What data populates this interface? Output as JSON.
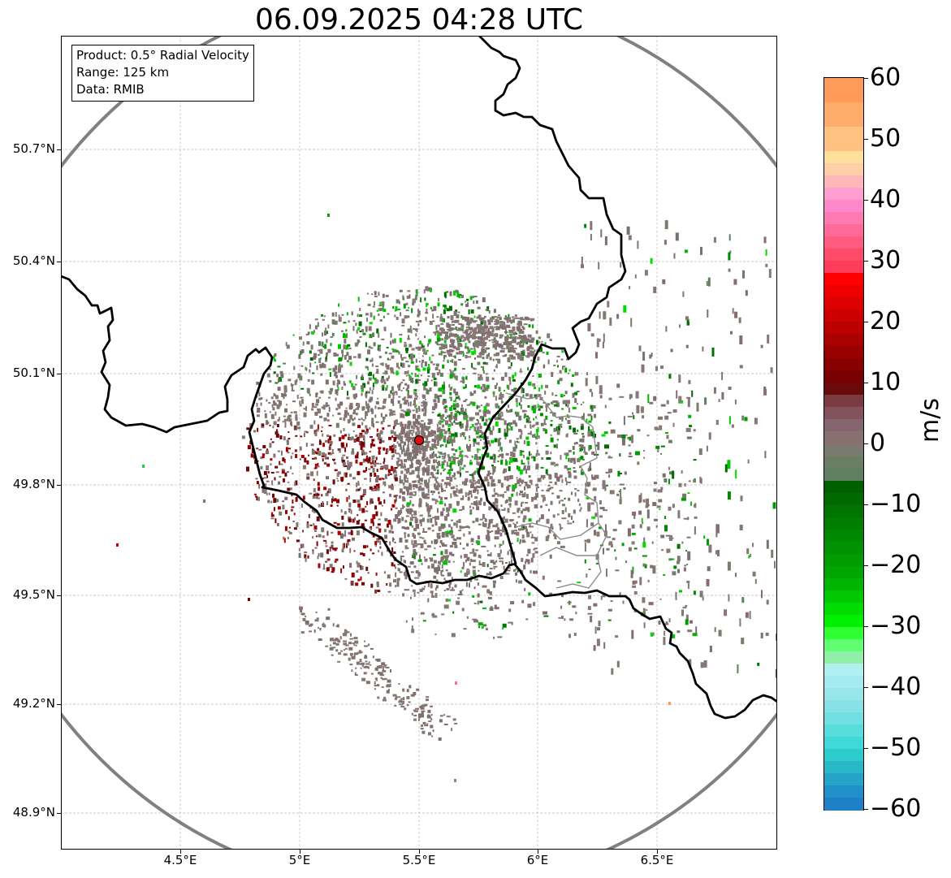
{
  "title": "06.09.2025 04:28 UTC",
  "info_box": {
    "product": "Product: 0.5° Radial Velocity",
    "range": "Range: 125 km",
    "data": "Data: RMIB"
  },
  "axes": {
    "lat_ticks": [
      "50.7°N",
      "50.4°N",
      "50.1°N",
      "49.8°N",
      "49.5°N",
      "49.2°N",
      "48.9°N"
    ],
    "lon_ticks": [
      "4.5°E",
      "5°E",
      "5.5°E",
      "6°E",
      "6.5°E"
    ],
    "lat_range": [
      48.8,
      50.99
    ],
    "lon_range": [
      4.0,
      7.0
    ],
    "grid": true
  },
  "radar": {
    "site_lon": 5.5,
    "site_lat": 49.915,
    "range_km": 125,
    "site_color": "#e01010"
  },
  "colorbar": {
    "unit": "m/s",
    "min": -60,
    "max": 60,
    "tick_labels": [
      "60",
      "50",
      "40",
      "30",
      "20",
      "10",
      "0",
      "−10",
      "−20",
      "−30",
      "−40",
      "−50",
      "−60"
    ],
    "stops": [
      {
        "v": 60,
        "color": "#ff9a58"
      },
      {
        "v": 56,
        "color": "#ffac6a"
      },
      {
        "v": 52,
        "color": "#ffc280"
      },
      {
        "v": 48,
        "color": "#ffe09a"
      },
      {
        "v": 46,
        "color": "#ffd0a8"
      },
      {
        "v": 44,
        "color": "#ffb6b6"
      },
      {
        "v": 42,
        "color": "#ff9ed0"
      },
      {
        "v": 40,
        "color": "#ff88cc"
      },
      {
        "v": 38,
        "color": "#ff7ab0"
      },
      {
        "v": 36,
        "color": "#ff6a98"
      },
      {
        "v": 34,
        "color": "#ff5a80"
      },
      {
        "v": 32,
        "color": "#ff4a6a"
      },
      {
        "v": 30,
        "color": "#ff3c5a"
      },
      {
        "v": 28,
        "color": "#ff0000"
      },
      {
        "v": 26,
        "color": "#ee0000"
      },
      {
        "v": 24,
        "color": "#dd0000"
      },
      {
        "v": 22,
        "color": "#cc0000"
      },
      {
        "v": 20,
        "color": "#bb0000"
      },
      {
        "v": 18,
        "color": "#aa0000"
      },
      {
        "v": 16,
        "color": "#990000"
      },
      {
        "v": 14,
        "color": "#880000"
      },
      {
        "v": 12,
        "color": "#770000"
      },
      {
        "v": 10,
        "color": "#6a0a0a"
      },
      {
        "v": 8,
        "color": "#7a3a3e"
      },
      {
        "v": 6,
        "color": "#84525a"
      },
      {
        "v": 4,
        "color": "#866470"
      },
      {
        "v": 2,
        "color": "#887070"
      },
      {
        "v": 0,
        "color": "#7a7a70"
      },
      {
        "v": -2,
        "color": "#6a7e64"
      },
      {
        "v": -4,
        "color": "#5e8060"
      },
      {
        "v": -6,
        "color": "#006000"
      },
      {
        "v": -8,
        "color": "#006a00"
      },
      {
        "v": -10,
        "color": "#007400"
      },
      {
        "v": -12,
        "color": "#007e00"
      },
      {
        "v": -14,
        "color": "#008800"
      },
      {
        "v": -16,
        "color": "#009200"
      },
      {
        "v": -18,
        "color": "#009c00"
      },
      {
        "v": -20,
        "color": "#00a600"
      },
      {
        "v": -22,
        "color": "#00b400"
      },
      {
        "v": -24,
        "color": "#00c800"
      },
      {
        "v": -26,
        "color": "#00dc00"
      },
      {
        "v": -28,
        "color": "#00f000"
      },
      {
        "v": -30,
        "color": "#30ff30"
      },
      {
        "v": -32,
        "color": "#60ff70"
      },
      {
        "v": -34,
        "color": "#90f0a8"
      },
      {
        "v": -36,
        "color": "#b0f0f0"
      },
      {
        "v": -38,
        "color": "#a4eaf0"
      },
      {
        "v": -40,
        "color": "#96e6ea"
      },
      {
        "v": -42,
        "color": "#86e2e6"
      },
      {
        "v": -44,
        "color": "#70e0e2"
      },
      {
        "v": -46,
        "color": "#58dcdc"
      },
      {
        "v": -48,
        "color": "#40d8d8"
      },
      {
        "v": -50,
        "color": "#2ccccc"
      },
      {
        "v": -52,
        "color": "#28b8c8"
      },
      {
        "v": -54,
        "color": "#24a4c8"
      },
      {
        "v": -56,
        "color": "#2090c8"
      },
      {
        "v": -58,
        "color": "#1e80c6"
      }
    ]
  }
}
